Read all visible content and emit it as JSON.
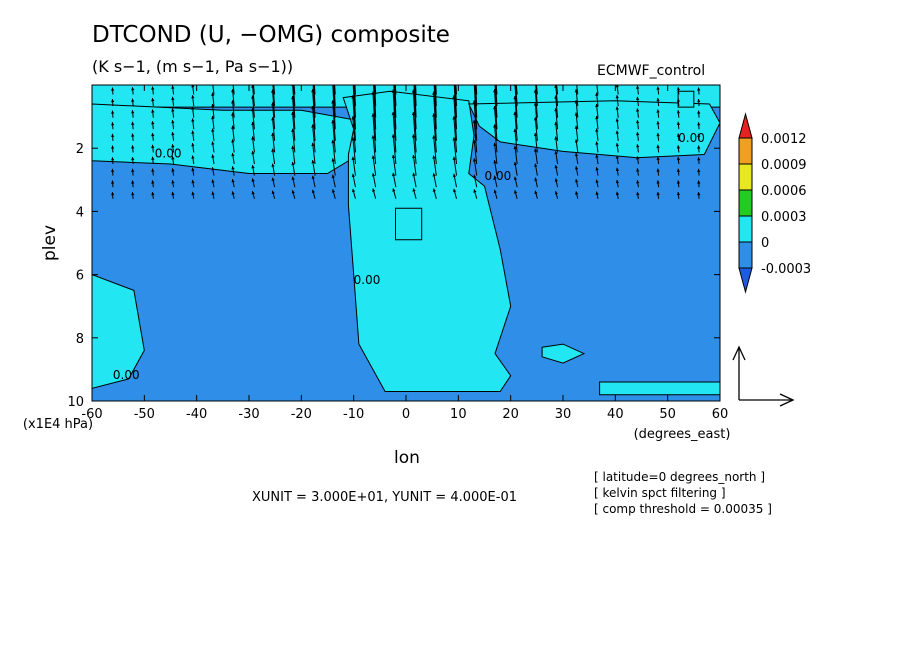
{
  "title": "DTCOND (U, −OMG) composite",
  "subtitle": "(K s−1, (m s−1, Pa s−1))",
  "run_label": "ECMWF_control",
  "unit_note": "XUNIT = 3.000E+01, YUNIT = 4.000E-01",
  "info_lines": [
    "[ latitude=0 degrees_north ]",
    "[ kelvin spct filtering ]",
    "[ comp threshold = 0.00035 ]"
  ],
  "colors": {
    "below_zero": "#2f8fe8",
    "zero_to_0.0003": "#22e6f2",
    "0.0003_to_0.0006": "#22cc22",
    "0.0006_to_0.0009": "#e8e820",
    "0.0009_to_0.0012": "#f0a020",
    "above_0.0012": "#e82020",
    "lowest_triangle": "#1c5ce0"
  },
  "chart_data": {
    "type": "heatmap",
    "overlay": "vector arrows (U, -OMG) with contour lines",
    "xlabel": "lon",
    "xunit_label": "(degrees_east)",
    "ylabel": "plev",
    "yunit_label": "(x1E4 hPa)",
    "xlim": [
      -60,
      60
    ],
    "ylim": [
      10,
      0
    ],
    "x_ticks": [
      "-60",
      "-50",
      "-40",
      "-30",
      "-20",
      "-10",
      "0",
      "10",
      "20",
      "30",
      "40",
      "50",
      "60"
    ],
    "y_ticks": [
      "2",
      "4",
      "6",
      "8",
      "10"
    ],
    "y_tick_values": [
      2,
      4,
      6,
      8,
      10
    ],
    "colorbar_levels": [
      "0.0012",
      "0.0009",
      "0.0006",
      "0.0003",
      "0",
      "-0.0003"
    ],
    "contour_labels": [
      "0.00",
      "0.00",
      "0.00",
      "0.00",
      "0.00"
    ],
    "contour_label_positions": [
      [
        -48,
        2.3
      ],
      [
        -56,
        9.3
      ],
      [
        15,
        3.0
      ],
      [
        -10,
        6.3
      ],
      [
        52,
        1.8
      ]
    ],
    "regions": [
      {
        "name": "upper-band",
        "polygon": [
          [
            -60,
            0
          ],
          [
            60,
            0
          ],
          [
            60,
            0.7
          ],
          [
            -60,
            0.7
          ]
        ]
      },
      {
        "name": "west-upper-lobe",
        "polygon": [
          [
            -60,
            0.6
          ],
          [
            -35,
            0.8
          ],
          [
            -20,
            0.8
          ],
          [
            -10,
            1.1
          ],
          [
            -9,
            2.2
          ],
          [
            -15,
            2.8
          ],
          [
            -30,
            2.8
          ],
          [
            -45,
            2.5
          ],
          [
            -60,
            2.4
          ]
        ]
      },
      {
        "name": "central-column",
        "polygon": [
          [
            -12,
            0.4
          ],
          [
            -3,
            0.2
          ],
          [
            12,
            0.5
          ],
          [
            13,
            1.6
          ],
          [
            12,
            2.8
          ],
          [
            15,
            3.2
          ],
          [
            18,
            5.2
          ],
          [
            20,
            7.0
          ],
          [
            17,
            8.5
          ],
          [
            20,
            9.2
          ],
          [
            18,
            9.7
          ],
          [
            -4,
            9.7
          ],
          [
            -9,
            8.2
          ],
          [
            -10,
            6.0
          ],
          [
            -11,
            3.8
          ],
          [
            -11,
            2.2
          ],
          [
            -10,
            1.4
          ]
        ]
      },
      {
        "name": "central-small-box",
        "polygon": [
          [
            -2,
            3.9
          ],
          [
            3,
            3.9
          ],
          [
            3,
            4.9
          ],
          [
            -2,
            4.9
          ]
        ]
      },
      {
        "name": "east-upper-lobe",
        "polygon": [
          [
            12,
            0.6
          ],
          [
            40,
            0.5
          ],
          [
            58,
            0.6
          ],
          [
            60,
            1.2
          ],
          [
            57,
            2.2
          ],
          [
            44,
            2.3
          ],
          [
            30,
            2.1
          ],
          [
            18,
            1.8
          ],
          [
            14,
            1.3
          ]
        ]
      },
      {
        "name": "east-upper-box",
        "polygon": [
          [
            52,
            0.2
          ],
          [
            55,
            0.2
          ],
          [
            55,
            0.7
          ],
          [
            52,
            0.7
          ]
        ]
      },
      {
        "name": "west-lower-lobe",
        "polygon": [
          [
            -60,
            6.0
          ],
          [
            -52,
            6.5
          ],
          [
            -50,
            8.4
          ],
          [
            -53,
            9.3
          ],
          [
            -60,
            9.6
          ]
        ]
      },
      {
        "name": "east-lower-lobe",
        "polygon": [
          [
            37,
            9.4
          ],
          [
            60,
            9.4
          ],
          [
            60,
            9.8
          ],
          [
            37,
            9.8
          ]
        ]
      },
      {
        "name": "east-lower-blob",
        "polygon": [
          [
            26,
            8.3
          ],
          [
            30,
            8.2
          ],
          [
            34,
            8.5
          ],
          [
            30,
            8.8
          ],
          [
            26,
            8.6
          ]
        ]
      }
    ],
    "vectors": [
      {
        "lon_range": [
          -56,
          56
        ],
        "plev_range": [
          0.3,
          3.6
        ],
        "u_lon": -2.8,
        "w_plev": -1.2,
        "nx": 30,
        "ny": 10,
        "peak_lon": 0,
        "peak_plev": 1.0,
        "width": 18,
        "upward_scale": 3.0
      }
    ],
    "vector_scale": {
      "XUNIT": 30.0,
      "YUNIT": 0.4
    }
  }
}
